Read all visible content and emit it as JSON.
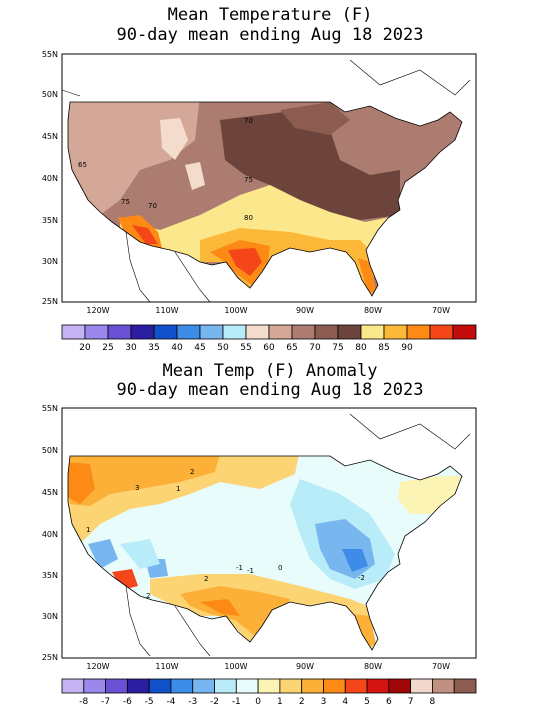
{
  "map1": {
    "title_line1": "Mean Temperature (F)",
    "title_line2": "90-day mean ending Aug 18 2023",
    "lat_labels": [
      "55N",
      "50N",
      "45N",
      "40N",
      "35N",
      "30N",
      "25N"
    ],
    "lon_labels": [
      "120W",
      "110W",
      "100W",
      "90W",
      "80W",
      "70W"
    ],
    "contour_labels": [
      "70",
      "65",
      "75",
      "70",
      "75",
      "80"
    ],
    "legend_labels": [
      "20",
      "25",
      "30",
      "35",
      "40",
      "45",
      "50",
      "55",
      "60",
      "65",
      "70",
      "75",
      "80",
      "85",
      "90"
    ],
    "legend_colors": [
      "#c4b4f4",
      "#9a88ec",
      "#6a50d4",
      "#2c1ea0",
      "#1050c8",
      "#3c8ce8",
      "#78b6f0",
      "#b8ecf8",
      "#f4dccc",
      "#d4a898",
      "#ac7c70",
      "#8c5c50",
      "#6c443c",
      "#fce88c",
      "#fcb838",
      "#fc8a14",
      "#f44618",
      "#c40c0c"
    ]
  },
  "map2": {
    "title_line1": "Mean Temp (F) Anomaly",
    "title_line2": "90-day mean ending Aug 18 2023",
    "lat_labels": [
      "55N",
      "50N",
      "45N",
      "40N",
      "35N",
      "30N",
      "25N"
    ],
    "lon_labels": [
      "120W",
      "110W",
      "100W",
      "90W",
      "80W",
      "70W"
    ],
    "contour_labels": [
      "2",
      "3",
      "1",
      "1",
      "-1",
      "0",
      "-1",
      "-2",
      "2",
      "2"
    ],
    "legend_labels": [
      "-8",
      "-7",
      "-6",
      "-5",
      "-4",
      "-3",
      "-2",
      "-1",
      "0",
      "1",
      "2",
      "3",
      "4",
      "5",
      "6",
      "7",
      "8"
    ],
    "legend_colors": [
      "#c4b4f4",
      "#9a88ec",
      "#6a50d4",
      "#2c1ea0",
      "#1050c8",
      "#3c8ce8",
      "#78b6f0",
      "#b8ecf8",
      "#e8fcfc",
      "#fcf4b4",
      "#fcd474",
      "#fcb038",
      "#fc8a14",
      "#f44618",
      "#d41410",
      "#a00808",
      "#f0d8cc",
      "#c09080",
      "#8c5c50"
    ]
  }
}
